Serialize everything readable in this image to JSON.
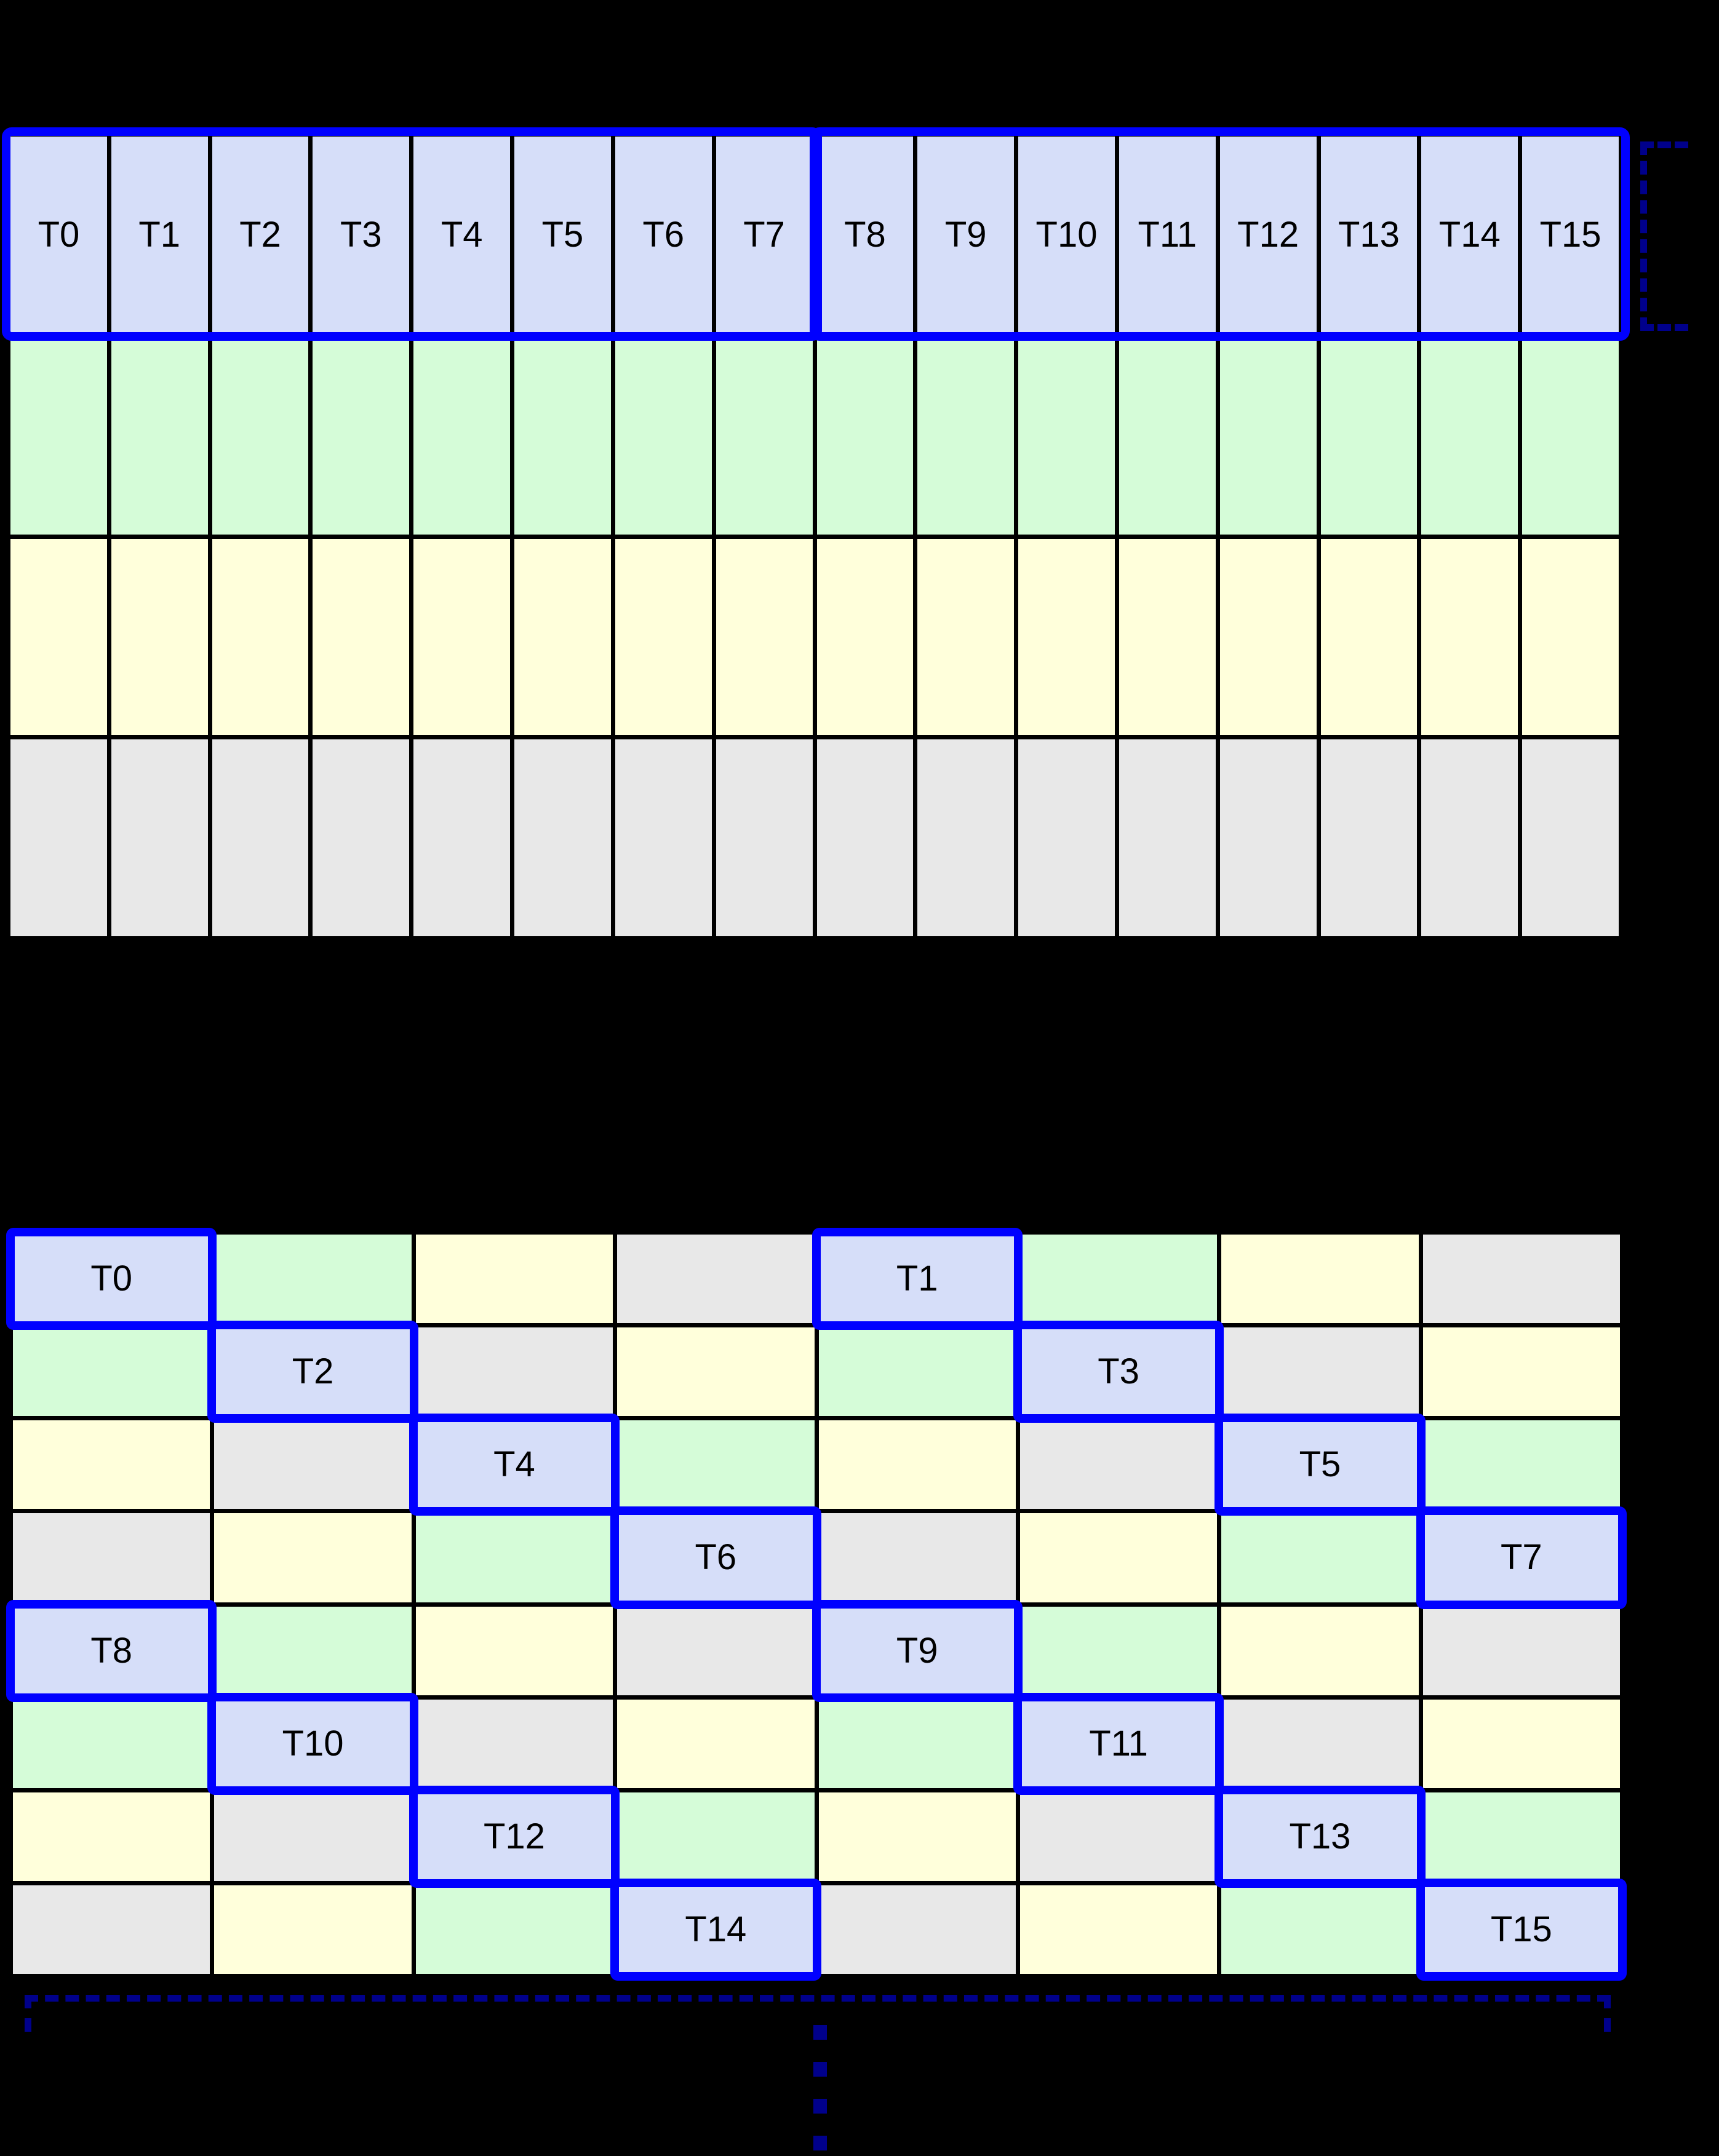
{
  "colors": {
    "background": "#000000",
    "grid_line": "#000000",
    "label": "#000000",
    "cell_thread": "#d6def9",
    "cell_green": "#d5fcd8",
    "cell_yellow": "#ffffdb",
    "cell_gray": "#e8e8e8",
    "highlight_blue": "#0000ff",
    "bracket_navy": "#00008b"
  },
  "top_grid": {
    "columns": 16,
    "rows": 4,
    "thread_labels": [
      "T0",
      "T1",
      "T2",
      "T3",
      "T4",
      "T5",
      "T6",
      "T7",
      "T8",
      "T9",
      "T10",
      "T11",
      "T12",
      "T13",
      "T14",
      "T15"
    ],
    "row_fills": [
      "cell_thread",
      "cell_green",
      "cell_yellow",
      "cell_gray"
    ],
    "thread_groups": [
      {
        "name": "threads-0-7",
        "start": 0,
        "end": 7
      },
      {
        "name": "threads-8-15",
        "start": 8,
        "end": 15
      }
    ]
  },
  "bottom_grid": {
    "columns": 8,
    "rows": 8,
    "cells": [
      [
        {
          "fill": "cell_thread",
          "label": "T0"
        },
        {
          "fill": "cell_green"
        },
        {
          "fill": "cell_yellow"
        },
        {
          "fill": "cell_gray"
        },
        {
          "fill": "cell_thread",
          "label": "T1"
        },
        {
          "fill": "cell_green"
        },
        {
          "fill": "cell_yellow"
        },
        {
          "fill": "cell_gray"
        }
      ],
      [
        {
          "fill": "cell_green"
        },
        {
          "fill": "cell_thread",
          "label": "T2"
        },
        {
          "fill": "cell_gray"
        },
        {
          "fill": "cell_yellow"
        },
        {
          "fill": "cell_green"
        },
        {
          "fill": "cell_thread",
          "label": "T3"
        },
        {
          "fill": "cell_gray"
        },
        {
          "fill": "cell_yellow"
        }
      ],
      [
        {
          "fill": "cell_yellow"
        },
        {
          "fill": "cell_gray"
        },
        {
          "fill": "cell_thread",
          "label": "T4"
        },
        {
          "fill": "cell_green"
        },
        {
          "fill": "cell_yellow"
        },
        {
          "fill": "cell_gray"
        },
        {
          "fill": "cell_thread",
          "label": "T5"
        },
        {
          "fill": "cell_green"
        }
      ],
      [
        {
          "fill": "cell_gray"
        },
        {
          "fill": "cell_yellow"
        },
        {
          "fill": "cell_green"
        },
        {
          "fill": "cell_thread",
          "label": "T6"
        },
        {
          "fill": "cell_gray"
        },
        {
          "fill": "cell_yellow"
        },
        {
          "fill": "cell_green"
        },
        {
          "fill": "cell_thread",
          "label": "T7"
        }
      ],
      [
        {
          "fill": "cell_thread",
          "label": "T8"
        },
        {
          "fill": "cell_green"
        },
        {
          "fill": "cell_yellow"
        },
        {
          "fill": "cell_gray"
        },
        {
          "fill": "cell_thread",
          "label": "T9"
        },
        {
          "fill": "cell_green"
        },
        {
          "fill": "cell_yellow"
        },
        {
          "fill": "cell_gray"
        }
      ],
      [
        {
          "fill": "cell_green"
        },
        {
          "fill": "cell_thread",
          "label": "T10"
        },
        {
          "fill": "cell_gray"
        },
        {
          "fill": "cell_yellow"
        },
        {
          "fill": "cell_green"
        },
        {
          "fill": "cell_thread",
          "label": "T11"
        },
        {
          "fill": "cell_gray"
        },
        {
          "fill": "cell_yellow"
        }
      ],
      [
        {
          "fill": "cell_yellow"
        },
        {
          "fill": "cell_gray"
        },
        {
          "fill": "cell_thread",
          "label": "T12"
        },
        {
          "fill": "cell_green"
        },
        {
          "fill": "cell_yellow"
        },
        {
          "fill": "cell_gray"
        },
        {
          "fill": "cell_thread",
          "label": "T13"
        },
        {
          "fill": "cell_green"
        }
      ],
      [
        {
          "fill": "cell_gray"
        },
        {
          "fill": "cell_yellow"
        },
        {
          "fill": "cell_green"
        },
        {
          "fill": "cell_thread",
          "label": "T14"
        },
        {
          "fill": "cell_gray"
        },
        {
          "fill": "cell_yellow"
        },
        {
          "fill": "cell_green"
        },
        {
          "fill": "cell_thread",
          "label": "T15"
        }
      ]
    ]
  },
  "annotations": {
    "row_bracket": {
      "side": "right-of-top-grid-row-1",
      "style": "dashed"
    },
    "span_bracket": {
      "side": "below-bottom-grid",
      "style": "dashed"
    },
    "ellipsis_dash_count": 4
  }
}
